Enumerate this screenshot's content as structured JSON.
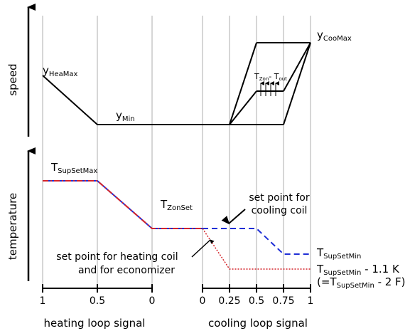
{
  "top": {
    "axis_label": "speed",
    "labels": {
      "y_hea_max": {
        "main": "y",
        "sub": "HeaMax"
      },
      "y_min": {
        "main": "y",
        "sub": "Min"
      },
      "y_coo_max": {
        "main": "y",
        "sub": "CooMax"
      },
      "tzon_tout": {
        "t1": "T",
        "s1": "Zon",
        "mid": "- T",
        "s2": "out"
      }
    }
  },
  "bottom": {
    "axis_label": "temperature",
    "labels": {
      "t_sup_set_max": {
        "main": "T",
        "sub": "SupSetMax"
      },
      "t_zon_set": {
        "main": "T",
        "sub": "ZonSet"
      },
      "t_sup_set_min": {
        "main": "T",
        "sub": "SupSetMin"
      },
      "t_sup_set_min_offset": {
        "main": "T",
        "sub": "SupSetMin",
        "suffix": " - 1.1 K"
      },
      "t_sup_set_min_f": {
        "prefix": "(=T",
        "sub": "SupSetMin",
        "suffix": " - 2 F)"
      }
    },
    "annotations": {
      "cooling_line1": "set point for",
      "cooling_line2": "cooling coil",
      "heating_line1": "set point for heating coil",
      "heating_line2": "and for economizer"
    }
  },
  "x_axis": {
    "heating_ticks": [
      "1",
      "0.5",
      "0"
    ],
    "cooling_ticks": [
      "0",
      "0.25",
      "0.5",
      "0.75",
      "1"
    ],
    "heating_label": "heating loop signal",
    "cooling_label": "cooling loop signal"
  },
  "colors": {
    "line": "#000000",
    "grid": "#999999",
    "cooling_setpoint": "#1f2fd6",
    "heating_setpoint": "#d4242a",
    "combined_setpoint": "#7a2a8f"
  }
}
